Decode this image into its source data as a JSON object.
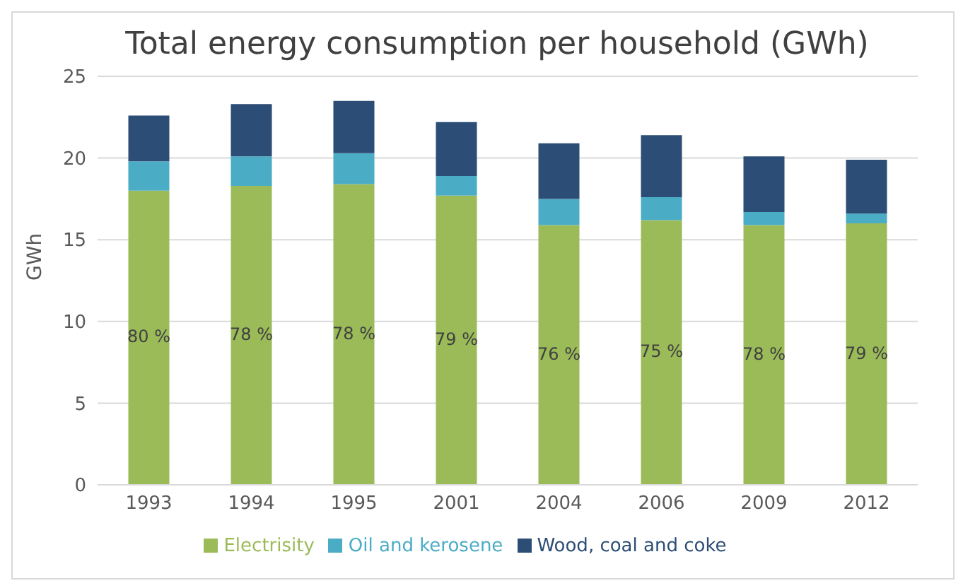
{
  "chart_data": {
    "type": "bar",
    "title": "Total energy consumption per household (GWh)",
    "ylabel": "GWh",
    "categories": [
      "1993",
      "1994",
      "1995",
      "2001",
      "2004",
      "2006",
      "2009",
      "2012"
    ],
    "stacked": true,
    "ylim": [
      0,
      25
    ],
    "yticks": [
      0,
      5,
      10,
      15,
      20,
      25
    ],
    "grid": "y",
    "legend": "bottom",
    "series": [
      {
        "name": "Electrisity",
        "color": "#9bbb59",
        "values": [
          18.0,
          18.3,
          18.4,
          17.7,
          15.9,
          16.2,
          15.9,
          16.0
        ]
      },
      {
        "name": "Oil and kerosene",
        "color": "#4bacc6",
        "values": [
          1.8,
          1.8,
          1.9,
          1.2,
          1.6,
          1.4,
          0.8,
          0.6
        ]
      },
      {
        "name": "Wood, coal and coke",
        "color": "#2c4d75",
        "values": [
          2.8,
          3.2,
          3.2,
          3.3,
          3.4,
          3.8,
          3.4,
          3.3
        ]
      }
    ],
    "annotations": [
      "80 %",
      "78 %",
      "78 %",
      "79 %",
      "76 %",
      "75 %",
      "78 %",
      "79 %"
    ]
  }
}
